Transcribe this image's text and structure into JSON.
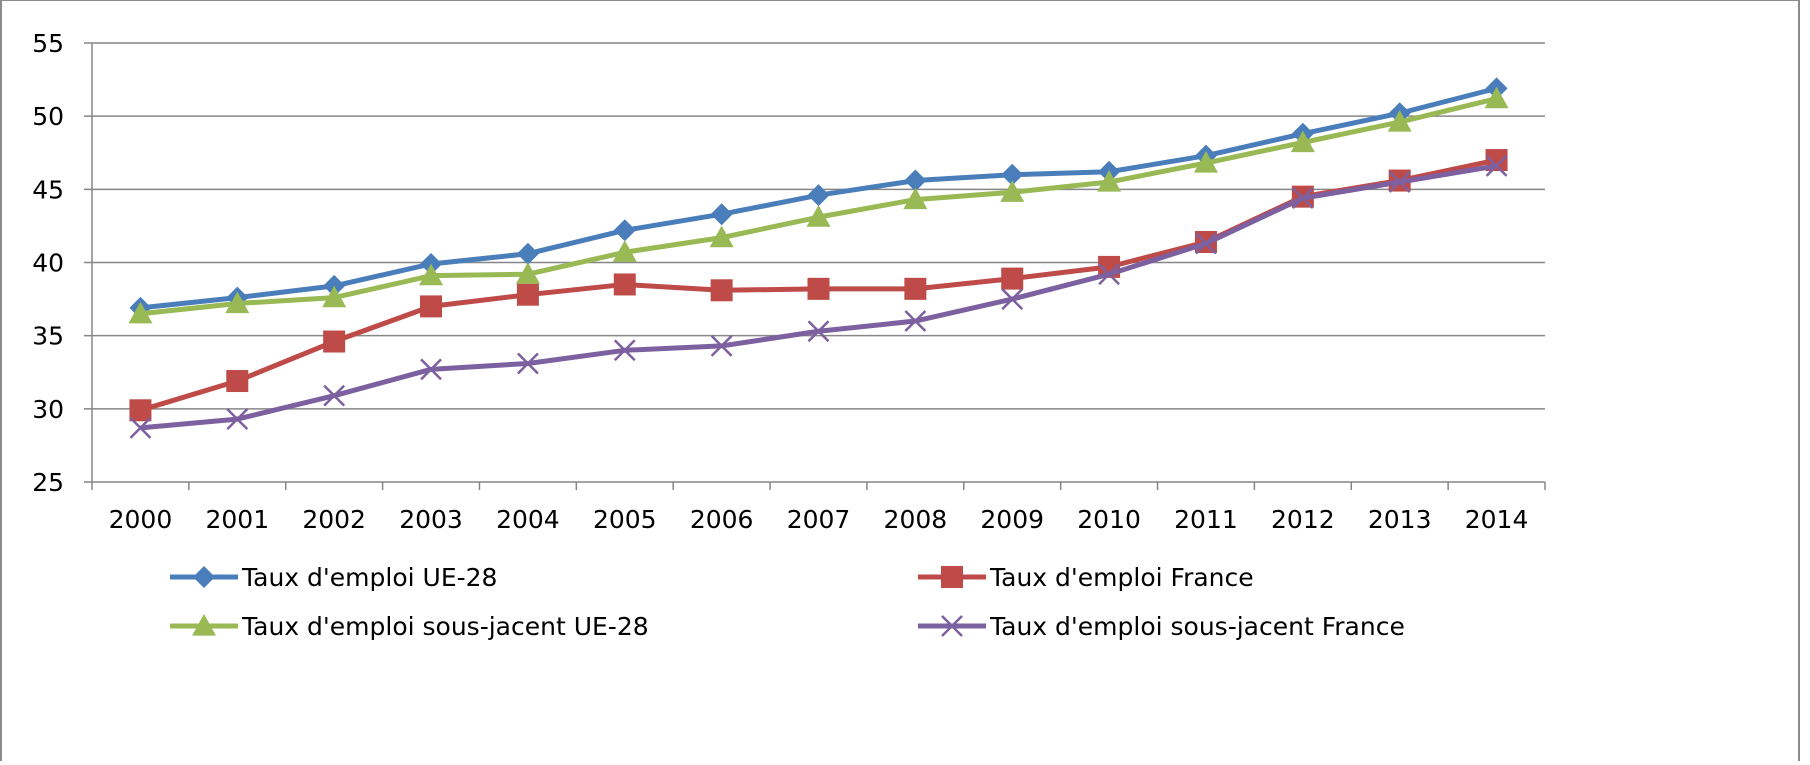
{
  "chart_data": {
    "type": "line",
    "title": "",
    "xlabel": "",
    "ylabel": "",
    "x": [
      "2000",
      "2001",
      "2002",
      "2003",
      "2004",
      "2005",
      "2006",
      "2007",
      "2008",
      "2009",
      "2010",
      "2011",
      "2012",
      "2013",
      "2014"
    ],
    "ylim": [
      25,
      55
    ],
    "yticks": [
      "25",
      "30",
      "35",
      "40",
      "45",
      "50",
      "55"
    ],
    "grid": true,
    "legend_position": "bottom",
    "series": [
      {
        "name": "Taux d'emploi UE-28",
        "color": "#4a7ebb",
        "marker": "diamond",
        "values": [
          36.9,
          37.6,
          38.4,
          39.9,
          40.6,
          42.2,
          43.3,
          44.6,
          45.6,
          46.0,
          46.2,
          47.3,
          48.8,
          50.2,
          51.9
        ]
      },
      {
        "name": "Taux d'emploi France",
        "color": "#be4b48",
        "marker": "square",
        "values": [
          29.9,
          31.9,
          34.6,
          37.0,
          37.8,
          38.5,
          38.1,
          38.2,
          38.2,
          38.9,
          39.7,
          41.4,
          44.5,
          45.6,
          47.0
        ]
      },
      {
        "name": "Taux d'emploi sous-jacent UE-28",
        "color": "#98b954",
        "marker": "triangle",
        "values": [
          36.5,
          37.2,
          37.6,
          39.1,
          39.2,
          40.7,
          41.7,
          43.1,
          44.3,
          44.8,
          45.5,
          46.8,
          48.2,
          49.6,
          51.2
        ]
      },
      {
        "name": "Taux d'emploi sous-jacent France",
        "color": "#7d60a0",
        "marker": "x",
        "values": [
          28.7,
          29.3,
          30.9,
          32.7,
          33.1,
          34.0,
          34.3,
          35.3,
          36.0,
          37.5,
          39.2,
          41.3,
          44.4,
          45.5,
          46.6
        ]
      }
    ]
  }
}
